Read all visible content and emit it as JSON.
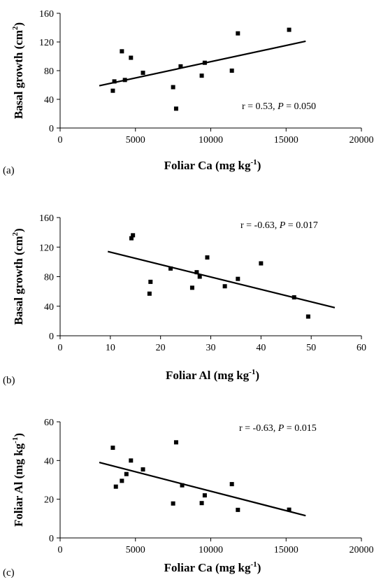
{
  "chart_data": [
    {
      "type": "scatter",
      "panel_label": "(a)",
      "xlabel_main": "Foliar Ca (mg kg",
      "xlabel_sup": "-1",
      "xlabel_end": ")",
      "ylabel_main": "Basal growth (cm",
      "ylabel_sup": "2",
      "ylabel_end": ")",
      "xlim": [
        0,
        20000
      ],
      "ylim": [
        0,
        160
      ],
      "xticks": [
        0,
        5000,
        10000,
        15000,
        20000
      ],
      "yticks": [
        0,
        40,
        80,
        120,
        160
      ],
      "points": [
        {
          "x": 3500,
          "y": 52
        },
        {
          "x": 3600,
          "y": 65
        },
        {
          "x": 4100,
          "y": 107
        },
        {
          "x": 4300,
          "y": 67
        },
        {
          "x": 4700,
          "y": 98
        },
        {
          "x": 5500,
          "y": 77
        },
        {
          "x": 7500,
          "y": 57
        },
        {
          "x": 7700,
          "y": 27
        },
        {
          "x": 8000,
          "y": 86
        },
        {
          "x": 9400,
          "y": 73
        },
        {
          "x": 9600,
          "y": 91
        },
        {
          "x": 11400,
          "y": 80
        },
        {
          "x": 11800,
          "y": 132
        },
        {
          "x": 15200,
          "y": 137
        }
      ],
      "trendline": {
        "x1": 2600,
        "y1": 59,
        "x2": 16300,
        "y2": 121
      },
      "annotation": {
        "r_text": "r = 0.53, ",
        "p_italic": "P",
        "p_text": " = 0.050"
      },
      "grid": false
    },
    {
      "type": "scatter",
      "panel_label": "(b)",
      "xlabel_main": "Foliar Al (mg kg",
      "xlabel_sup": "-1",
      "xlabel_end": ")",
      "ylabel_main": "Basal growth (cm",
      "ylabel_sup": "2",
      "ylabel_end": ")",
      "xlim": [
        0,
        60
      ],
      "ylim": [
        0,
        160
      ],
      "xticks": [
        0,
        10,
        20,
        30,
        40,
        50,
        60
      ],
      "yticks": [
        0,
        40,
        80,
        120,
        160
      ],
      "points": [
        {
          "x": 14.2,
          "y": 132
        },
        {
          "x": 14.5,
          "y": 136
        },
        {
          "x": 17.8,
          "y": 57
        },
        {
          "x": 18.0,
          "y": 73
        },
        {
          "x": 22.0,
          "y": 91
        },
        {
          "x": 26.3,
          "y": 65
        },
        {
          "x": 27.2,
          "y": 86
        },
        {
          "x": 27.8,
          "y": 80
        },
        {
          "x": 29.3,
          "y": 106
        },
        {
          "x": 32.8,
          "y": 67
        },
        {
          "x": 35.4,
          "y": 77
        },
        {
          "x": 40.0,
          "y": 98
        },
        {
          "x": 46.6,
          "y": 52
        },
        {
          "x": 49.4,
          "y": 26
        }
      ],
      "trendline": {
        "x1": 9.5,
        "y1": 114,
        "x2": 54.7,
        "y2": 38
      },
      "annotation": {
        "r_text": "r = -0.63, ",
        "p_italic": "P",
        "p_text": " = 0.017"
      },
      "grid": false
    },
    {
      "type": "scatter",
      "panel_label": "(c)",
      "xlabel_main": "Foliar Ca (mg kg",
      "xlabel_sup": "-1",
      "xlabel_end": ")",
      "ylabel_main": "Foliar Al  (mg kg",
      "ylabel_sup": "-1",
      "ylabel_end": ")",
      "xlim": [
        0,
        20000
      ],
      "ylim": [
        0,
        60
      ],
      "xticks": [
        0,
        5000,
        10000,
        15000,
        20000
      ],
      "yticks": [
        0,
        20,
        40,
        60
      ],
      "points": [
        {
          "x": 3500,
          "y": 46.6
        },
        {
          "x": 3700,
          "y": 26.5
        },
        {
          "x": 4100,
          "y": 29.5
        },
        {
          "x": 4400,
          "y": 33
        },
        {
          "x": 4700,
          "y": 40
        },
        {
          "x": 5500,
          "y": 35.4
        },
        {
          "x": 7500,
          "y": 17.8
        },
        {
          "x": 7700,
          "y": 49.4
        },
        {
          "x": 8100,
          "y": 27.2
        },
        {
          "x": 9400,
          "y": 18.0
        },
        {
          "x": 9600,
          "y": 22.0
        },
        {
          "x": 11400,
          "y": 27.8
        },
        {
          "x": 11800,
          "y": 14.5
        },
        {
          "x": 15200,
          "y": 14.6
        }
      ],
      "trendline": {
        "x1": 2600,
        "y1": 39,
        "x2": 16300,
        "y2": 11.5
      },
      "annotation": {
        "r_text": "r = -0.63, ",
        "p_italic": "P",
        "p_text": " = 0.015"
      },
      "grid": false
    }
  ]
}
